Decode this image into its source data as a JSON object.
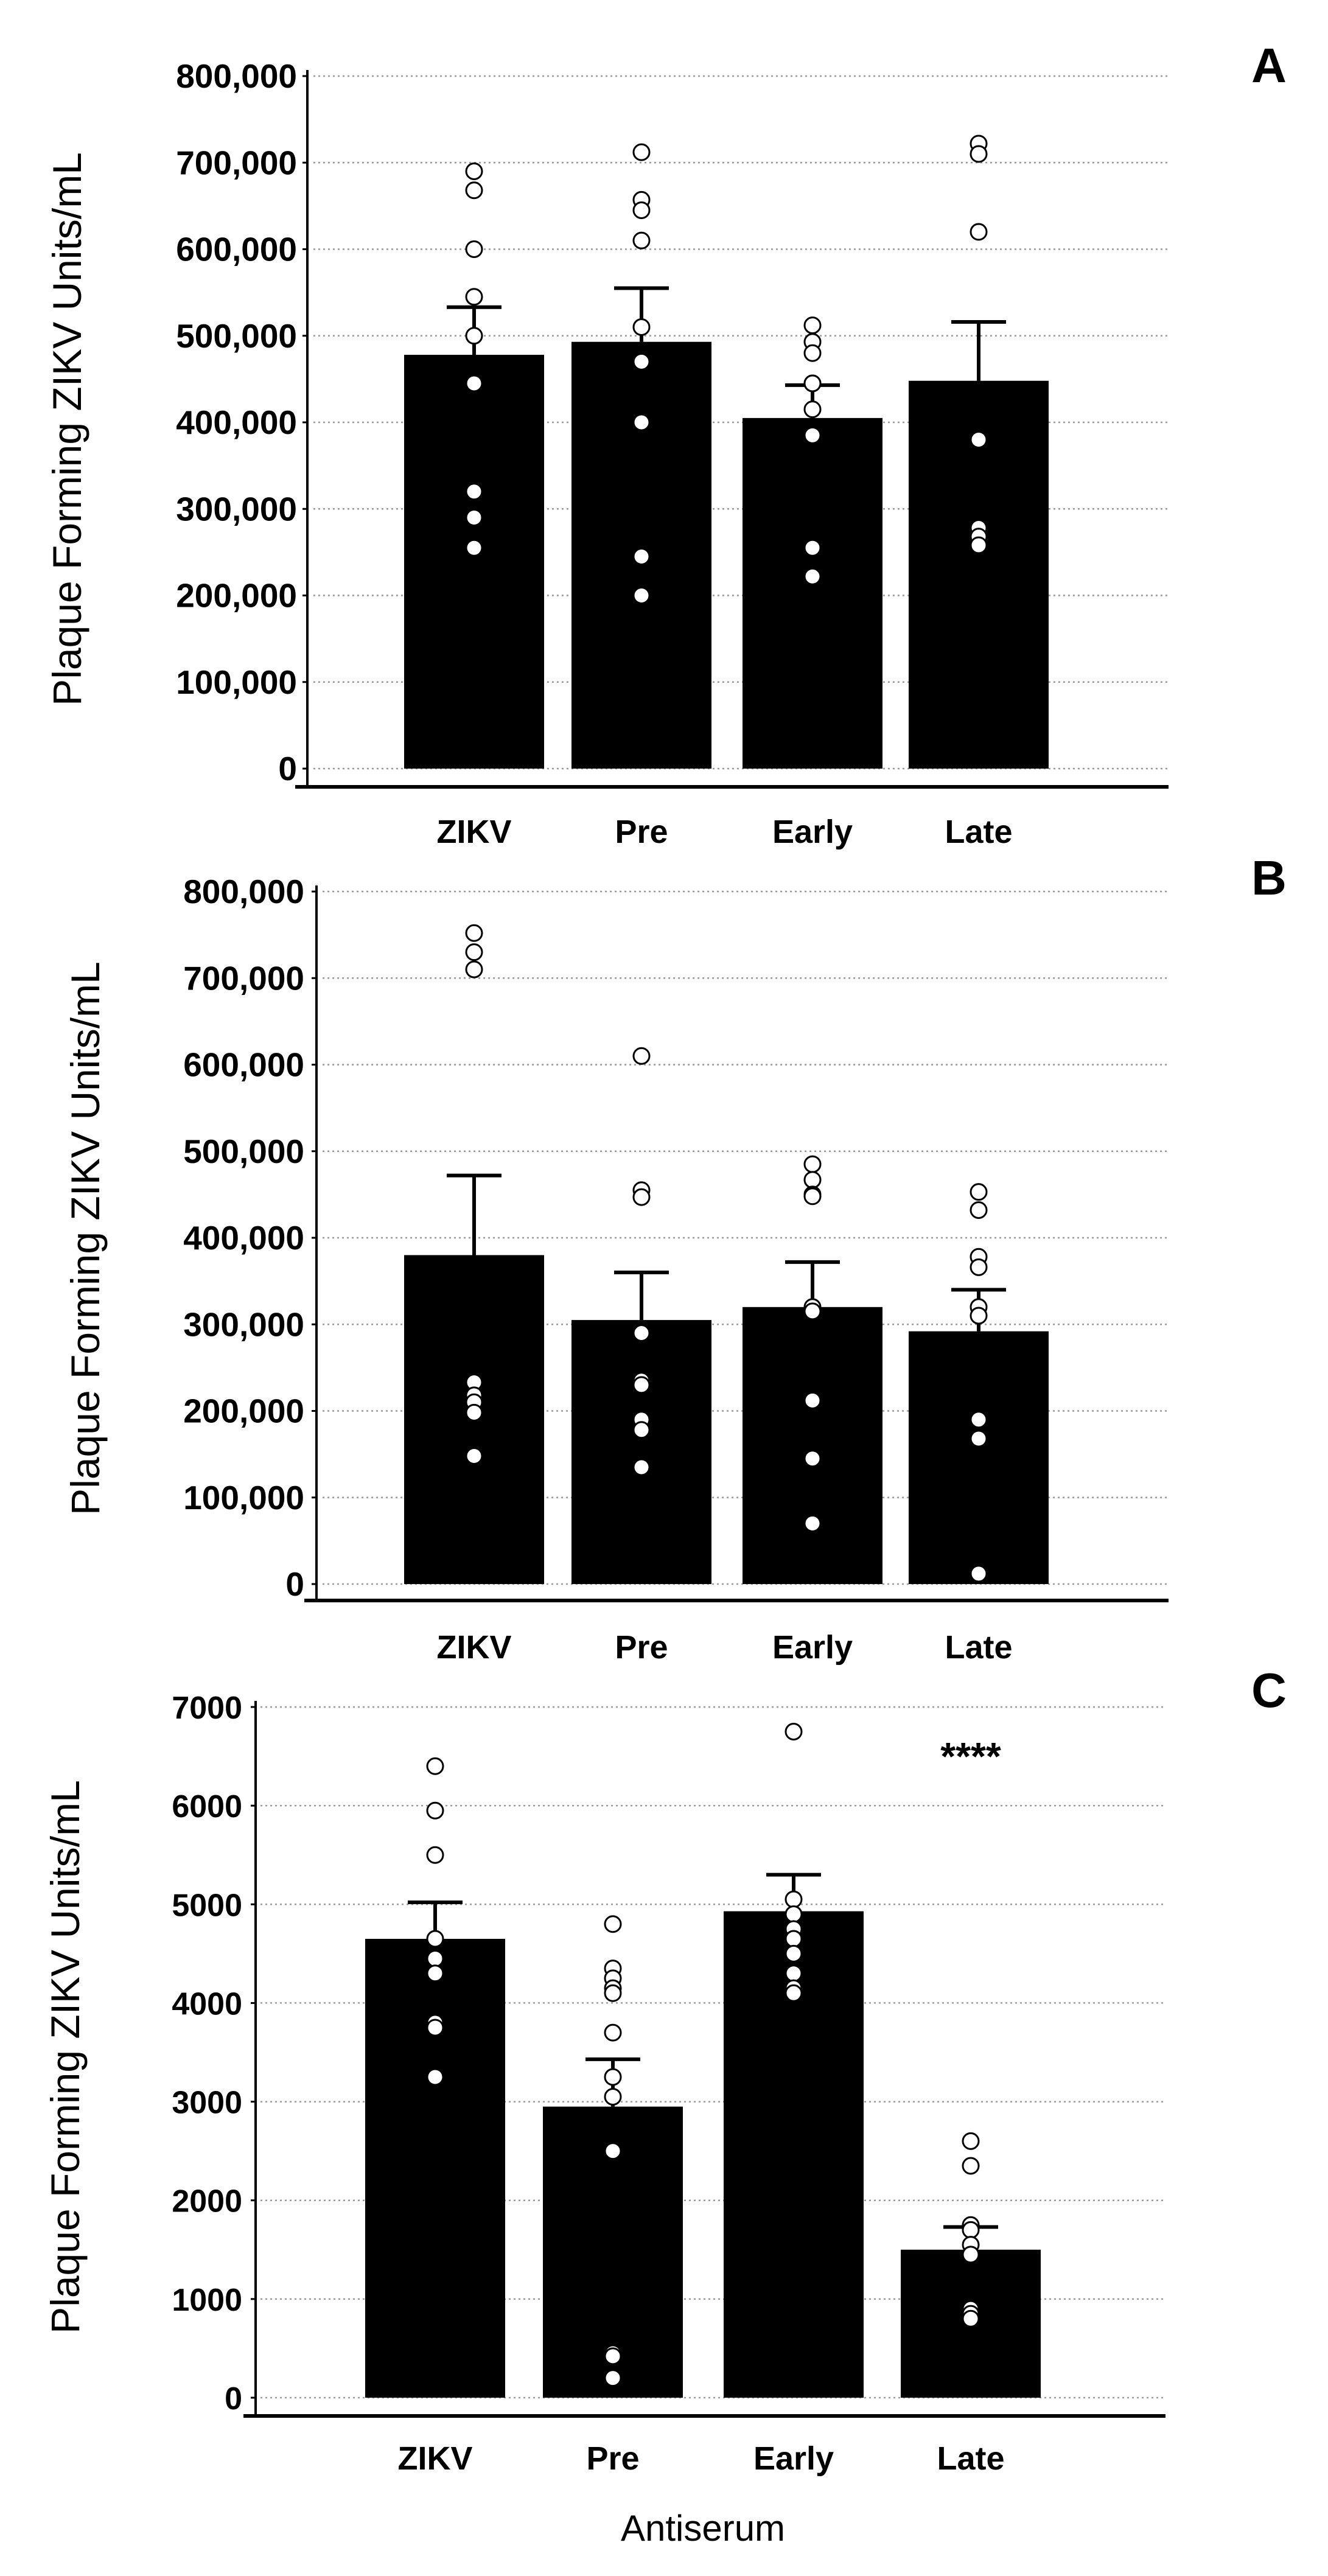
{
  "chart_data": [
    {
      "panel": "A",
      "type": "bar",
      "ylabel": "Plaque Forming ZIKV Units/mL",
      "xlabel": "",
      "ylim": [
        0,
        800000
      ],
      "yticks": [
        0,
        100000,
        200000,
        300000,
        400000,
        500000,
        600000,
        700000,
        800000
      ],
      "ytick_labels": [
        "0",
        "100,000",
        "200,000",
        "300,000",
        "400,000",
        "500,000",
        "600,000",
        "700,000",
        "800,000"
      ],
      "grid": true,
      "categories": [
        "ZIKV",
        "Pre",
        "Early",
        "Late"
      ],
      "values": [
        478000,
        493000,
        405000,
        448000
      ],
      "error": [
        55000,
        62000,
        38000,
        68000
      ],
      "points": [
        [
          690000,
          668000,
          600000,
          545000,
          500000,
          445000,
          320000,
          290000,
          255000
        ],
        [
          712000,
          657000,
          645000,
          610000,
          510000,
          470000,
          400000,
          245000,
          200000
        ],
        [
          512000,
          493000,
          480000,
          445000,
          445000,
          415000,
          385000,
          255000,
          222000
        ],
        [
          722000,
          710000,
          620000,
          380000,
          380000,
          278000,
          268000,
          258000
        ]
      ],
      "annotations": []
    },
    {
      "panel": "B",
      "type": "bar",
      "ylabel": "Plaque Forming ZIKV Units/mL",
      "xlabel": "",
      "ylim": [
        0,
        800000
      ],
      "yticks": [
        0,
        100000,
        200000,
        300000,
        400000,
        500000,
        600000,
        700000,
        800000
      ],
      "ytick_labels": [
        "0",
        "100,000",
        "200,000",
        "300,000",
        "400,000",
        "500,000",
        "600,000",
        "700,000",
        "800,000"
      ],
      "grid": true,
      "categories": [
        "ZIKV",
        "Pre",
        "Early",
        "Late"
      ],
      "values": [
        380000,
        305000,
        320000,
        292000
      ],
      "error": [
        92000,
        55000,
        52000,
        48000
      ],
      "points": [
        [
          752000,
          730000,
          710000,
          235000,
          233000,
          218000,
          210000,
          198000,
          148000
        ],
        [
          610000,
          455000,
          447000,
          290000,
          235000,
          230000,
          190000,
          178000,
          135000
        ],
        [
          485000,
          467000,
          450000,
          448000,
          320000,
          315000,
          212000,
          145000,
          70000
        ],
        [
          453000,
          432000,
          378000,
          366000,
          320000,
          310000,
          190000,
          168000,
          12000
        ]
      ],
      "annotations": []
    },
    {
      "panel": "C",
      "type": "bar",
      "ylabel": "Plaque Forming ZIKV Units/mL",
      "xlabel": "Antiserum",
      "ylim": [
        0,
        7000
      ],
      "yticks": [
        0,
        1000,
        2000,
        3000,
        4000,
        5000,
        6000,
        7000
      ],
      "ytick_labels": [
        "0",
        "1000",
        "2000",
        "3000",
        "4000",
        "5000",
        "6000",
        "7000"
      ],
      "grid": true,
      "categories": [
        "ZIKV",
        "Pre",
        "Early",
        "Late"
      ],
      "values": [
        4650,
        2950,
        4930,
        1500
      ],
      "error": [
        370,
        480,
        370,
        230
      ],
      "points": [
        [
          6400,
          5950,
          5500,
          4650,
          4450,
          4300,
          3800,
          3750,
          3250
        ],
        [
          4800,
          4350,
          4250,
          4150,
          4100,
          3700,
          3250,
          3050,
          2500,
          450,
          420,
          200
        ],
        [
          6750,
          5050,
          4900,
          4750,
          4650,
          4500,
          4300,
          4150,
          4100
        ],
        [
          2600,
          2350,
          1750,
          1700,
          1550,
          1450,
          900,
          850,
          800
        ]
      ],
      "annotations": [
        {
          "category": "Late",
          "text": "****"
        }
      ]
    }
  ],
  "panels": [
    {
      "letter": "A",
      "ylabel": "Plaque Forming ZIKV Units/mL",
      "categories": [
        "ZIKV",
        "Pre",
        "Early",
        "Late"
      ]
    },
    {
      "letter": "B",
      "ylabel": "Plaque Forming ZIKV Units/mL",
      "categories": [
        "ZIKV",
        "Pre",
        "Early",
        "Late"
      ]
    },
    {
      "letter": "C",
      "ylabel": "Plaque Forming ZIKV Units/mL",
      "categories": [
        "ZIKV",
        "Pre",
        "Early",
        "Late"
      ],
      "xlabel": "Antiserum",
      "significance": "****"
    }
  ],
  "colors": {
    "bar": "#000000",
    "grid": "#9a9a9a",
    "axis": "#000000",
    "point_fill": "#ffffff",
    "point_stroke": "#000000"
  }
}
